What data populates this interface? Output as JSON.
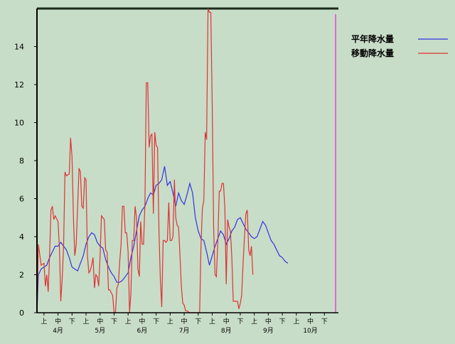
{
  "chart_data": {
    "type": "line",
    "title": "",
    "xlabel": "",
    "ylabel": "",
    "ylim": [
      0,
      16
    ],
    "yticks": [
      0,
      2,
      4,
      6,
      8,
      10,
      12,
      14
    ],
    "xlim": [
      0,
      21.5
    ],
    "xticks": [
      {
        "pos": 0.5,
        "label": "上"
      },
      {
        "pos": 1.5,
        "label": "中"
      },
      {
        "pos": 2.5,
        "label": "下"
      },
      {
        "pos": 3.5,
        "label": "上"
      },
      {
        "pos": 4.5,
        "label": "中"
      },
      {
        "pos": 5.5,
        "label": "下"
      },
      {
        "pos": 6.5,
        "label": "上"
      },
      {
        "pos": 7.5,
        "label": "中"
      },
      {
        "pos": 8.5,
        "label": "下"
      },
      {
        "pos": 9.5,
        "label": "上"
      },
      {
        "pos": 10.5,
        "label": "中"
      },
      {
        "pos": 11.5,
        "label": "下"
      },
      {
        "pos": 12.5,
        "label": "上"
      },
      {
        "pos": 13.5,
        "label": "中"
      },
      {
        "pos": 14.5,
        "label": "下"
      },
      {
        "pos": 15.5,
        "label": "上"
      },
      {
        "pos": 16.5,
        "label": "中"
      },
      {
        "pos": 17.5,
        "label": "下"
      },
      {
        "pos": 18.5,
        "label": "上"
      },
      {
        "pos": 19.5,
        "label": "中"
      },
      {
        "pos": 20.5,
        "label": "下"
      }
    ],
    "month_labels": [
      {
        "pos": 1.5,
        "label": "4月"
      },
      {
        "pos": 4.5,
        "label": "5月"
      },
      {
        "pos": 7.5,
        "label": "6月"
      },
      {
        "pos": 10.5,
        "label": "7月"
      },
      {
        "pos": 13.5,
        "label": "8月"
      },
      {
        "pos": 16.5,
        "label": "9月"
      },
      {
        "pos": 19.5,
        "label": "10月"
      }
    ],
    "marker_line_x": 21.3,
    "colors": {
      "marker_line": "#dd66dd",
      "axes": "#000000"
    },
    "series": [
      {
        "name": "平年降水量",
        "color": "#3333dd",
        "points": [
          [
            0,
            0
          ],
          [
            0.1,
            2.0
          ],
          [
            0.3,
            2.3
          ],
          [
            0.5,
            2.4
          ],
          [
            0.7,
            2.5
          ],
          [
            0.9,
            2.9
          ],
          [
            1.1,
            3.2
          ],
          [
            1.3,
            3.5
          ],
          [
            1.5,
            3.5
          ],
          [
            1.7,
            3.7
          ],
          [
            1.9,
            3.5
          ],
          [
            2.1,
            3.3
          ],
          [
            2.3,
            2.9
          ],
          [
            2.5,
            2.4
          ],
          [
            2.7,
            2.3
          ],
          [
            2.9,
            2.2
          ],
          [
            3.1,
            2.6
          ],
          [
            3.3,
            3.0
          ],
          [
            3.5,
            3.6
          ],
          [
            3.7,
            4.0
          ],
          [
            3.9,
            4.2
          ],
          [
            4.1,
            4.1
          ],
          [
            4.3,
            3.7
          ],
          [
            4.5,
            3.5
          ],
          [
            4.7,
            3.4
          ],
          [
            4.9,
            2.8
          ],
          [
            5.1,
            2.4
          ],
          [
            5.3,
            2.1
          ],
          [
            5.5,
            1.9
          ],
          [
            5.7,
            1.6
          ],
          [
            5.9,
            1.6
          ],
          [
            6.1,
            1.7
          ],
          [
            6.3,
            1.9
          ],
          [
            6.5,
            2.1
          ],
          [
            6.7,
            2.9
          ],
          [
            6.9,
            3.5
          ],
          [
            7.1,
            4.3
          ],
          [
            7.3,
            5.1
          ],
          [
            7.5,
            5.4
          ],
          [
            7.7,
            5.6
          ],
          [
            7.9,
            6.0
          ],
          [
            8.1,
            6.3
          ],
          [
            8.3,
            6.2
          ],
          [
            8.5,
            6.7
          ],
          [
            8.7,
            6.8
          ],
          [
            8.9,
            7.0
          ],
          [
            9.1,
            7.7
          ],
          [
            9.3,
            6.7
          ],
          [
            9.5,
            6.9
          ],
          [
            9.7,
            6.3
          ],
          [
            9.9,
            5.6
          ],
          [
            10.1,
            6.3
          ],
          [
            10.3,
            5.9
          ],
          [
            10.5,
            5.7
          ],
          [
            10.7,
            6.2
          ],
          [
            10.9,
            6.8
          ],
          [
            11.1,
            6.3
          ],
          [
            11.3,
            5.0
          ],
          [
            11.5,
            4.3
          ],
          [
            11.7,
            3.9
          ],
          [
            11.9,
            3.8
          ],
          [
            12.1,
            3.2
          ],
          [
            12.3,
            2.5
          ],
          [
            12.5,
            3.0
          ],
          [
            12.7,
            3.5
          ],
          [
            12.9,
            3.9
          ],
          [
            13.1,
            4.3
          ],
          [
            13.3,
            4.1
          ],
          [
            13.5,
            3.6
          ],
          [
            13.7,
            3.9
          ],
          [
            13.9,
            4.3
          ],
          [
            14.1,
            4.5
          ],
          [
            14.3,
            4.9
          ],
          [
            14.5,
            5.0
          ],
          [
            14.7,
            4.7
          ],
          [
            14.9,
            4.4
          ],
          [
            15.1,
            4.2
          ],
          [
            15.3,
            4.0
          ],
          [
            15.5,
            3.9
          ],
          [
            15.7,
            4.0
          ],
          [
            15.9,
            4.4
          ],
          [
            16.1,
            4.8
          ],
          [
            16.3,
            4.6
          ],
          [
            16.5,
            4.2
          ],
          [
            16.7,
            3.8
          ],
          [
            16.9,
            3.6
          ],
          [
            17.1,
            3.3
          ],
          [
            17.3,
            3.0
          ],
          [
            17.5,
            2.9
          ],
          [
            17.7,
            2.7
          ],
          [
            17.9,
            2.6
          ]
        ]
      },
      {
        "name": "移動降水量",
        "color": "#dd3333",
        "points": [
          [
            0,
            0
          ],
          [
            0.1,
            3.6
          ],
          [
            0.3,
            2.5
          ],
          [
            0.5,
            2.6
          ],
          [
            0.6,
            1.4
          ],
          [
            0.7,
            2.0
          ],
          [
            0.8,
            1.1
          ],
          [
            0.9,
            3.0
          ],
          [
            1.0,
            5.4
          ],
          [
            1.1,
            5.6
          ],
          [
            1.2,
            4.9
          ],
          [
            1.3,
            5.1
          ],
          [
            1.5,
            4.8
          ],
          [
            1.6,
            3.4
          ],
          [
            1.7,
            0.6
          ],
          [
            1.8,
            1.8
          ],
          [
            1.9,
            3.6
          ],
          [
            2.0,
            7.4
          ],
          [
            2.1,
            7.2
          ],
          [
            2.3,
            7.3
          ],
          [
            2.4,
            9.2
          ],
          [
            2.5,
            8.2
          ],
          [
            2.6,
            5.0
          ],
          [
            2.7,
            3.0
          ],
          [
            2.8,
            3.6
          ],
          [
            3.0,
            7.6
          ],
          [
            3.1,
            7.4
          ],
          [
            3.2,
            5.6
          ],
          [
            3.3,
            5.5
          ],
          [
            3.4,
            7.1
          ],
          [
            3.5,
            7.0
          ],
          [
            3.6,
            3.0
          ],
          [
            3.7,
            2.1
          ],
          [
            3.8,
            2.2
          ],
          [
            3.9,
            2.5
          ],
          [
            4.0,
            2.9
          ],
          [
            4.1,
            1.3
          ],
          [
            4.2,
            2.0
          ],
          [
            4.3,
            1.9
          ],
          [
            4.4,
            1.4
          ],
          [
            4.5,
            2.9
          ],
          [
            4.6,
            5.1
          ],
          [
            4.8,
            4.9
          ],
          [
            4.9,
            3.3
          ],
          [
            5.0,
            3.2
          ],
          [
            5.1,
            1.2
          ],
          [
            5.2,
            1.2
          ],
          [
            5.4,
            0.9
          ],
          [
            5.5,
            0.0
          ],
          [
            5.6,
            0.0
          ],
          [
            5.7,
            1.3
          ],
          [
            5.8,
            1.5
          ],
          [
            5.9,
            2.7
          ],
          [
            6.0,
            3.6
          ],
          [
            6.1,
            5.6
          ],
          [
            6.2,
            5.6
          ],
          [
            6.3,
            4.2
          ],
          [
            6.4,
            4.2
          ],
          [
            6.5,
            3.2
          ],
          [
            6.6,
            0.0
          ],
          [
            6.7,
            1.0
          ],
          [
            6.8,
            3.8
          ],
          [
            6.9,
            3.8
          ],
          [
            7.0,
            5.6
          ],
          [
            7.1,
            5.0
          ],
          [
            7.2,
            2.3
          ],
          [
            7.3,
            1.9
          ],
          [
            7.4,
            4.8
          ],
          [
            7.5,
            3.6
          ],
          [
            7.6,
            3.6
          ],
          [
            7.7,
            5.8
          ],
          [
            7.8,
            12.1
          ],
          [
            7.9,
            12.1
          ],
          [
            8.0,
            8.7
          ],
          [
            8.1,
            9.3
          ],
          [
            8.2,
            9.4
          ],
          [
            8.3,
            5.2
          ],
          [
            8.4,
            9.5
          ],
          [
            8.5,
            8.8
          ],
          [
            8.6,
            8.7
          ],
          [
            8.7,
            4.3
          ],
          [
            8.8,
            1.8
          ],
          [
            8.9,
            0.3
          ],
          [
            9.0,
            3.8
          ],
          [
            9.1,
            3.8
          ],
          [
            9.2,
            3.7
          ],
          [
            9.3,
            3.8
          ],
          [
            9.4,
            5.8
          ],
          [
            9.5,
            3.8
          ],
          [
            9.6,
            3.8
          ],
          [
            9.7,
            4.0
          ],
          [
            9.8,
            7.0
          ],
          [
            9.9,
            5.0
          ],
          [
            10.0,
            4.6
          ],
          [
            10.1,
            4.5
          ],
          [
            10.2,
            3.0
          ],
          [
            10.3,
            1.4
          ],
          [
            10.4,
            0.5
          ],
          [
            10.5,
            0.4
          ],
          [
            10.6,
            0.1
          ],
          [
            10.7,
            0.1
          ],
          [
            10.9,
            0.0
          ],
          [
            11.1,
            0.0
          ],
          [
            11.5,
            0.0
          ],
          [
            11.6,
            0.0
          ],
          [
            11.7,
            3.5
          ],
          [
            11.8,
            5.5
          ],
          [
            11.9,
            5.9
          ],
          [
            12.0,
            9.5
          ],
          [
            12.1,
            9.1
          ],
          [
            12.2,
            16.0
          ],
          [
            12.3,
            15.8
          ],
          [
            12.4,
            15.8
          ],
          [
            12.5,
            11.0
          ],
          [
            12.6,
            4.5
          ],
          [
            12.7,
            2.0
          ],
          [
            12.8,
            1.9
          ],
          [
            12.9,
            3.8
          ],
          [
            13.0,
            6.4
          ],
          [
            13.1,
            6.4
          ],
          [
            13.2,
            6.8
          ],
          [
            13.3,
            6.8
          ],
          [
            13.4,
            5.5
          ],
          [
            13.5,
            1.5
          ],
          [
            13.6,
            4.9
          ],
          [
            13.7,
            4.5
          ],
          [
            13.8,
            4.3
          ],
          [
            13.9,
            2.9
          ],
          [
            14.0,
            0.6
          ],
          [
            14.1,
            0.6
          ],
          [
            14.3,
            0.6
          ],
          [
            14.4,
            0.2
          ],
          [
            14.5,
            0.5
          ],
          [
            14.6,
            0.9
          ],
          [
            14.7,
            2.6
          ],
          [
            14.8,
            4.0
          ],
          [
            14.9,
            5.2
          ],
          [
            15.0,
            5.4
          ],
          [
            15.1,
            3.3
          ],
          [
            15.2,
            3.0
          ],
          [
            15.3,
            3.5
          ],
          [
            15.4,
            2.0
          ]
        ]
      }
    ]
  }
}
